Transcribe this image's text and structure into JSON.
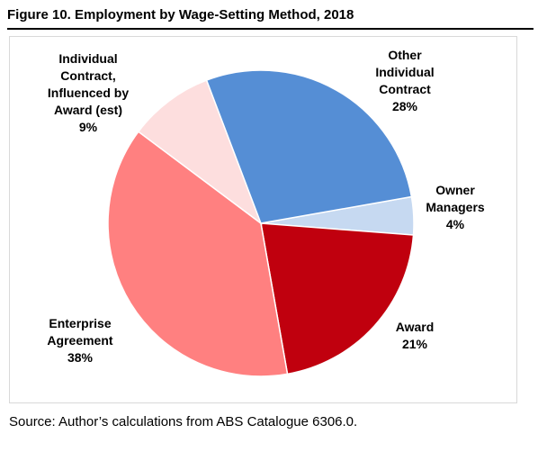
{
  "figure": {
    "title": "Figure 10. Employment by Wage-Setting Method, 2018",
    "source": "Source: Author’s calculations from ABS Catalogue 6306.0."
  },
  "chart_data": {
    "type": "pie",
    "title": "",
    "slices": [
      {
        "label": "Owner Managers",
        "label_lines": [
          "Owner",
          "Managers"
        ],
        "value_label": "4%",
        "value": 4,
        "color": "#c6d9f1"
      },
      {
        "label": "Award",
        "label_lines": [
          "Award"
        ],
        "value_label": "21%",
        "value": 21,
        "color": "#c0000e"
      },
      {
        "label": "Enterprise Agreement",
        "label_lines": [
          "Enterprise",
          "Agreement"
        ],
        "value_label": "38%",
        "value": 38,
        "color": "#ff8080"
      },
      {
        "label": "Individual Contract, Influenced by Award (est)",
        "label_lines": [
          "Individual",
          "Contract,",
          "Influenced by",
          "Award (est)"
        ],
        "value_label": "9%",
        "value": 9,
        "color": "#fddede"
      },
      {
        "label": "Other Individual Contract",
        "label_lines": [
          "Other",
          "Individual",
          "Contract"
        ],
        "value_label": "28%",
        "value": 28,
        "color": "#558ed5"
      }
    ],
    "legend": "none"
  }
}
